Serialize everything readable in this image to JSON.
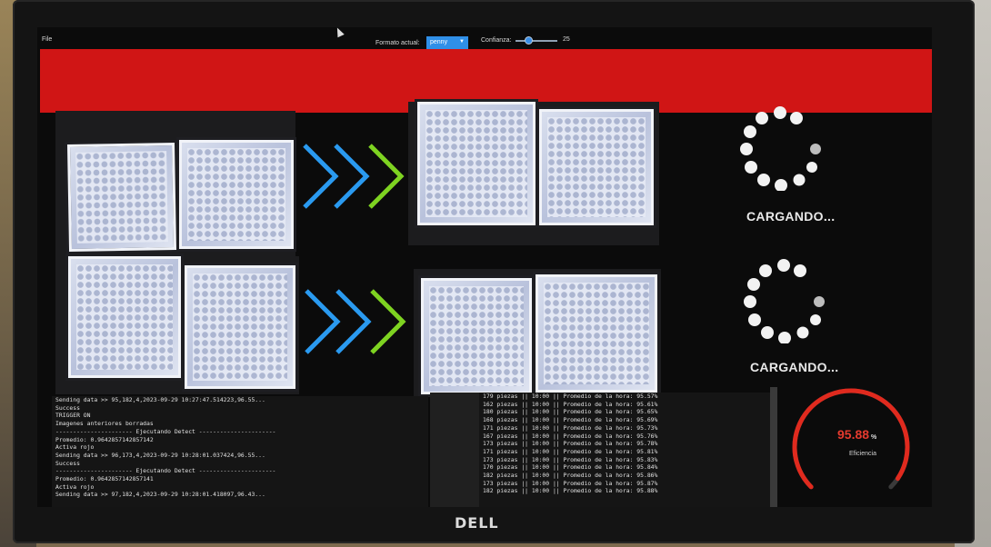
{
  "menu": {
    "file": "File"
  },
  "toolbar": {
    "format_label": "Formato actual:",
    "format_value": "penny",
    "confidence_label": "Confianza:",
    "confidence_value": "25"
  },
  "loaders": [
    {
      "label": "CARGANDO..."
    },
    {
      "label": "CARGANDO..."
    }
  ],
  "colors": {
    "banner": "#d01515",
    "chevron_blue": "#2a9af0",
    "chevron_green": "#7ed321",
    "gauge": "#e02a1e"
  },
  "log_left": [
    "Sending data >> 95,182,4,2023-09-29 10:27:47.514223,96.55...",
    "Success",
    "TRIGGER ON",
    "Imagenes anteriores borradas",
    "---------------------- Ejecutando Detect ----------------------",
    "Promedio: 0.9642857142857142",
    "Activa rojo",
    "Sending data >> 96,173,4,2023-09-29 10:28:01.037424,96.55...",
    "Success",
    "---------------------- Ejecutando Detect ----------------------",
    "Promedio: 0.9642857142857141",
    "Activa rojo",
    "Sending data >> 97,182,4,2023-09-29 10:28:01.418097,96.43..."
  ],
  "log_right": [
    "179 piezas || 10:00 || Promedio de la hora: 95.57%",
    "162 piezas || 10:00 || Promedio de la hora: 95.61%",
    "180 piezas || 10:00 || Promedio de la hora: 95.65%",
    "168 piezas || 10:00 || Promedio de la hora: 95.69%",
    "171 piezas || 10:00 || Promedio de la hora: 95.73%",
    "167 piezas || 10:00 || Promedio de la hora: 95.76%",
    "173 piezas || 10:00 || Promedio de la hora: 95.78%",
    "171 piezas || 10:00 || Promedio de la hora: 95.81%",
    "173 piezas || 10:00 || Promedio de la hora: 95.83%",
    "170 piezas || 10:00 || Promedio de la hora: 95.84%",
    "182 piezas || 10:00 || Promedio de la hora: 95.86%",
    "173 piezas || 10:00 || Promedio de la hora: 95.87%",
    "182 piezas || 10:00 || Promedio de la hora: 95.88%"
  ],
  "gauge": {
    "value": "95.88",
    "unit": "%",
    "label": "Eficiencia",
    "fraction": 0.9588
  },
  "brand": "DELL"
}
